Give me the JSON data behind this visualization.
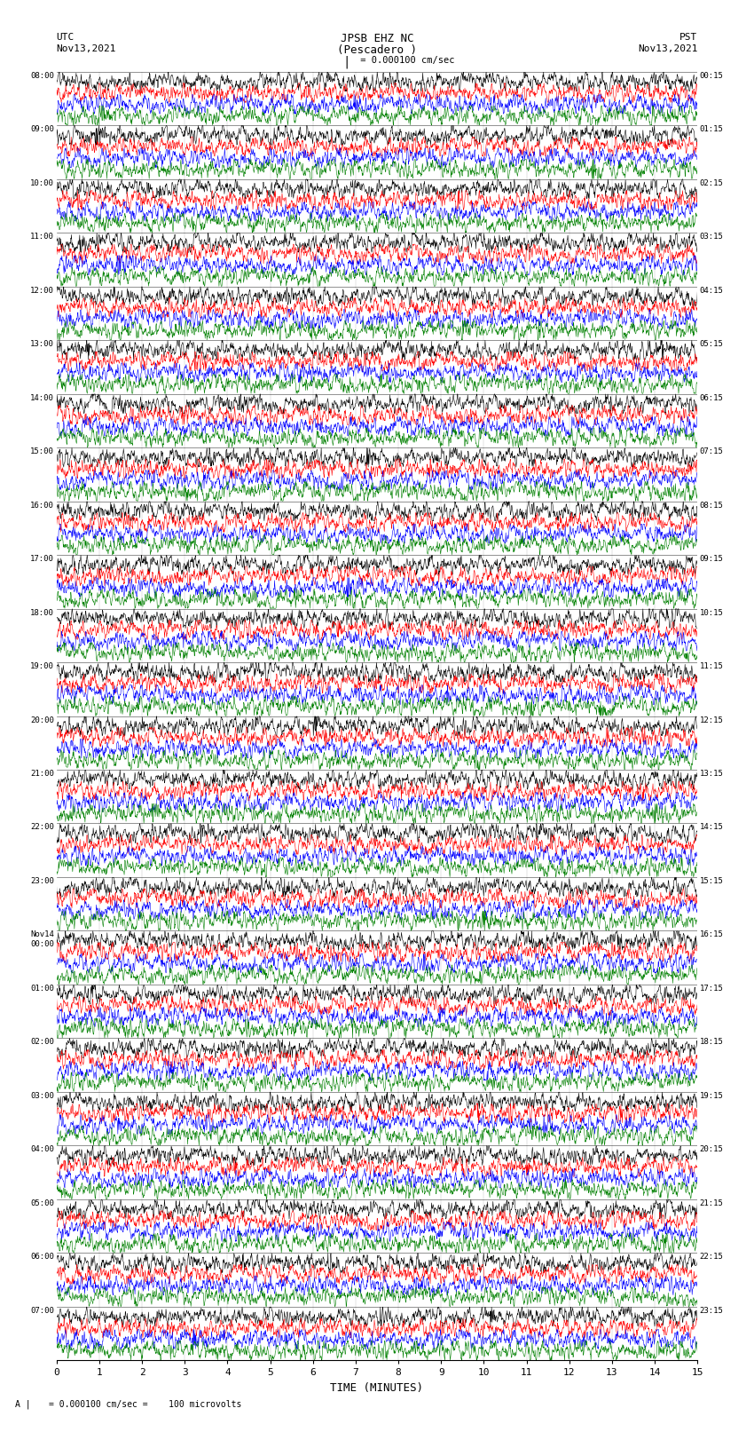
{
  "title_line1": "JPSB EHZ NC",
  "title_line2": "(Pescadero )",
  "scale_text": "= 0.000100 cm/sec",
  "utc_label": "UTC",
  "utc_date": "Nov13,2021",
  "pst_label": "PST",
  "pst_date": "Nov13,2021",
  "xlabel": "TIME (MINUTES)",
  "footer_text": "= 0.000100 cm/sec =    100 microvolts",
  "left_times_utc": [
    "08:00",
    "09:00",
    "10:00",
    "11:00",
    "12:00",
    "13:00",
    "14:00",
    "15:00",
    "16:00",
    "17:00",
    "18:00",
    "19:00",
    "20:00",
    "21:00",
    "22:00",
    "23:00",
    "Nov14\n00:00",
    "01:00",
    "02:00",
    "03:00",
    "04:00",
    "05:00",
    "06:00",
    "07:00"
  ],
  "right_times_pst": [
    "00:15",
    "01:15",
    "02:15",
    "03:15",
    "04:15",
    "05:15",
    "06:15",
    "07:15",
    "08:15",
    "09:15",
    "10:15",
    "11:15",
    "12:15",
    "13:15",
    "14:15",
    "15:15",
    "16:15",
    "17:15",
    "18:15",
    "19:15",
    "20:15",
    "21:15",
    "22:15",
    "23:15"
  ],
  "n_rows": 24,
  "traces_per_row": 4,
  "colors": [
    "black",
    "red",
    "blue",
    "green"
  ],
  "bg_color": "white",
  "x_ticks": [
    0,
    1,
    2,
    3,
    4,
    5,
    6,
    7,
    8,
    9,
    10,
    11,
    12,
    13,
    14,
    15
  ],
  "x_lim": [
    0,
    15
  ],
  "fig_width": 8.5,
  "fig_height": 16.13
}
